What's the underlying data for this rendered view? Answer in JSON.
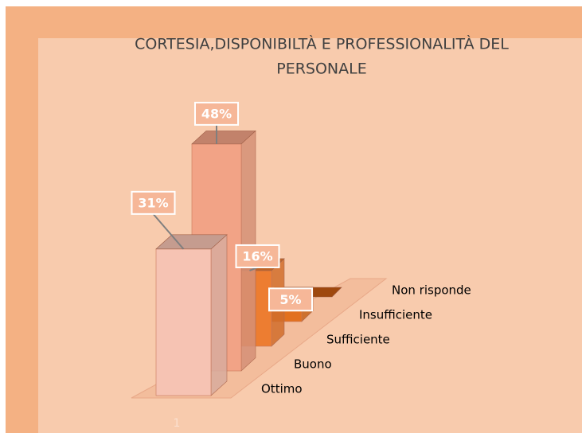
{
  "chart_data": {
    "type": "bar3d",
    "title": [
      "CORTESIA,DISPONIBILTÀ E PROFESSIONALITÀ DEL",
      "PERSONALE"
    ],
    "axis_label": "1",
    "categories": [
      "Ottimo",
      "Buono",
      "Sufficiente",
      "Insufficiente",
      "Non risponde"
    ],
    "values": [
      31,
      48,
      16,
      5,
      0
    ],
    "value_labels": [
      "31%",
      "48%",
      "16%",
      "5%",
      null
    ],
    "colors": [
      "#f6c3b3",
      "#f2a386",
      "#ed7d31",
      "#e2711f",
      "#c55a11"
    ],
    "ylim": [
      0,
      50
    ]
  }
}
